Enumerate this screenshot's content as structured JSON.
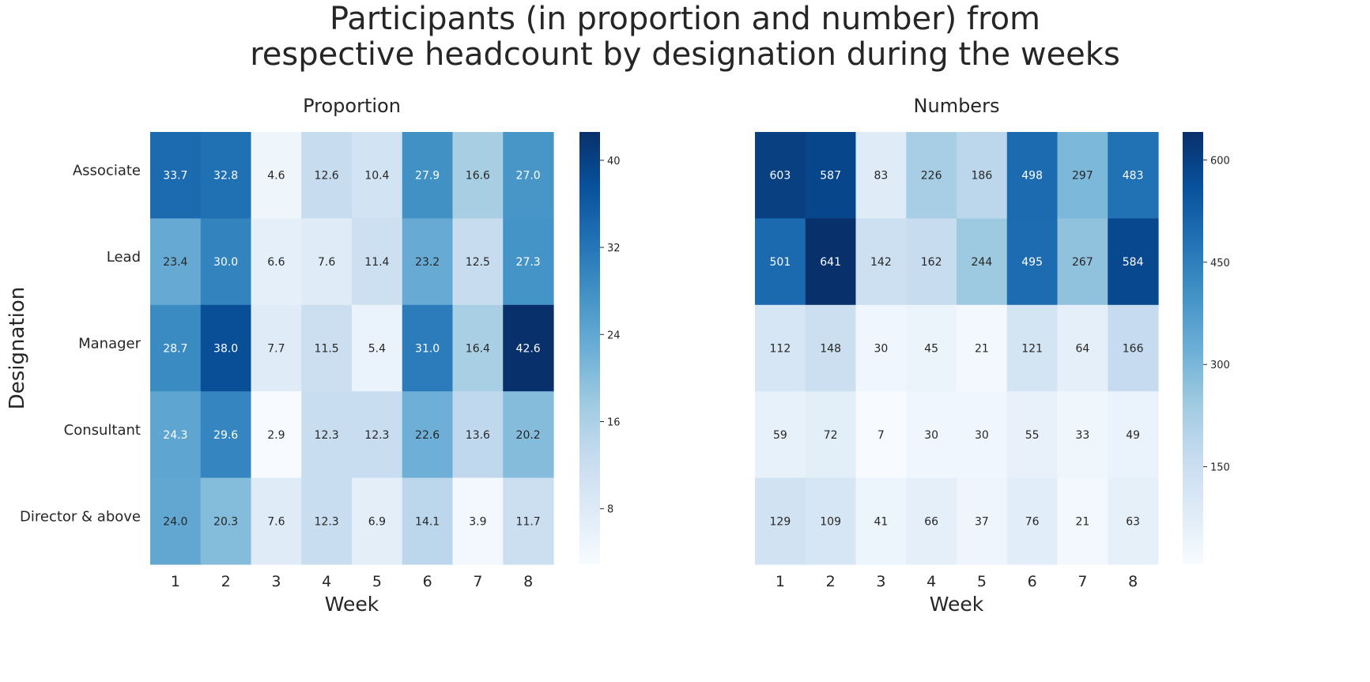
{
  "title_lines": [
    "Participants (in proportion and number) from",
    "respective headcount by designation during the weeks"
  ],
  "colorscale": {
    "name": "Blues",
    "stops": [
      "#f7fbff",
      "#deebf7",
      "#c6dbef",
      "#9ecae1",
      "#6baed6",
      "#4292c6",
      "#2171b5",
      "#08519c",
      "#08306b"
    ]
  },
  "text_colors": {
    "dark": "#262626",
    "light": "#ffffff"
  },
  "chart_data": [
    {
      "type": "heatmap",
      "title": "Proportion",
      "xlabel": "Week",
      "ylabel": "Designation",
      "x_categories": [
        "1",
        "2",
        "3",
        "4",
        "5",
        "6",
        "7",
        "8"
      ],
      "y_categories": [
        "Associate",
        "Lead",
        "Manager",
        "Consultant",
        "Director & above"
      ],
      "values": [
        [
          33.7,
          32.8,
          4.6,
          12.6,
          10.4,
          27.9,
          16.6,
          27.0
        ],
        [
          23.4,
          30.0,
          6.6,
          7.6,
          11.4,
          23.2,
          12.5,
          27.3
        ],
        [
          28.7,
          38.0,
          7.7,
          11.5,
          5.4,
          31.0,
          16.4,
          42.6
        ],
        [
          24.3,
          29.6,
          2.9,
          12.3,
          12.3,
          22.6,
          13.6,
          20.2
        ],
        [
          24.0,
          20.3,
          7.6,
          12.3,
          6.9,
          14.1,
          3.9,
          11.7
        ]
      ],
      "value_format": "0.1f",
      "colorbar": {
        "range": [
          2.9,
          42.6
        ],
        "ticks": [
          8,
          16,
          24,
          32,
          40
        ]
      }
    },
    {
      "type": "heatmap",
      "title": "Numbers",
      "xlabel": "Week",
      "ylabel": "",
      "x_categories": [
        "1",
        "2",
        "3",
        "4",
        "5",
        "6",
        "7",
        "8"
      ],
      "y_categories": [
        "Associate",
        "Lead",
        "Manager",
        "Consultant",
        "Director & above"
      ],
      "values": [
        [
          603,
          587,
          83,
          226,
          186,
          498,
          297,
          483
        ],
        [
          501,
          641,
          142,
          162,
          244,
          495,
          267,
          584
        ],
        [
          112,
          148,
          30,
          45,
          21,
          121,
          64,
          166
        ],
        [
          59,
          72,
          7,
          30,
          30,
          55,
          33,
          49
        ],
        [
          129,
          109,
          41,
          66,
          37,
          76,
          21,
          63
        ]
      ],
      "value_format": "0f",
      "show_y_ticklabels": false,
      "colorbar": {
        "range": [
          7,
          641
        ],
        "ticks": [
          150,
          300,
          450,
          600
        ]
      }
    }
  ]
}
